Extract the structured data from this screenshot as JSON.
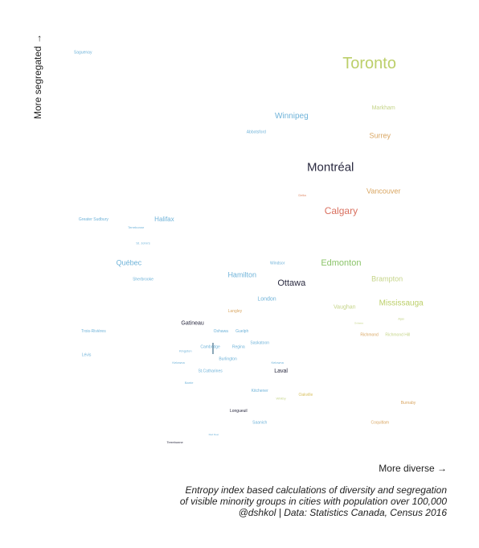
{
  "chart_data": {
    "type": "scatter",
    "title": "",
    "xlabel": "More diverse →",
    "ylabel": "More segregated →",
    "xlim": [
      0,
      1
    ],
    "ylim": [
      0,
      1
    ],
    "points": [
      {
        "label": "Toronto",
        "x": 0.84,
        "y": 0.96,
        "color": "#bccf6a",
        "size": 20
      },
      {
        "label": "Saguenay",
        "x": 0.03,
        "y": 0.99,
        "color": "#6fb3d9",
        "size": 5
      },
      {
        "label": "Markham",
        "x": 0.88,
        "y": 0.85,
        "color": "#c5d488",
        "size": 7
      },
      {
        "label": "Winnipeg",
        "x": 0.62,
        "y": 0.83,
        "color": "#6fb3d9",
        "size": 10
      },
      {
        "label": "Abbotsford",
        "x": 0.52,
        "y": 0.79,
        "color": "#6fb3d9",
        "size": 5
      },
      {
        "label": "Surrey",
        "x": 0.87,
        "y": 0.78,
        "color": "#d9a662",
        "size": 9
      },
      {
        "label": "Montréal",
        "x": 0.73,
        "y": 0.7,
        "color": "#2a2a40",
        "size": 15
      },
      {
        "label": "Vancouver",
        "x": 0.88,
        "y": 0.64,
        "color": "#d9a662",
        "size": 9
      },
      {
        "label": "Delta",
        "x": 0.65,
        "y": 0.63,
        "color": "#e08a66",
        "size": 4
      },
      {
        "label": "Calgary",
        "x": 0.76,
        "y": 0.59,
        "color": "#d9705f",
        "size": 12
      },
      {
        "label": "Halifax",
        "x": 0.26,
        "y": 0.57,
        "color": "#6fb3d9",
        "size": 8
      },
      {
        "label": "Greater Sudbury",
        "x": 0.06,
        "y": 0.57,
        "color": "#6fb3d9",
        "size": 5
      },
      {
        "label": "Terrebonne",
        "x": 0.18,
        "y": 0.55,
        "color": "#6fb3d9",
        "size": 4
      },
      {
        "label": "St. John's",
        "x": 0.2,
        "y": 0.51,
        "color": "#6fb3d9",
        "size": 4
      },
      {
        "label": "Québec",
        "x": 0.16,
        "y": 0.46,
        "color": "#6fb3d9",
        "size": 9
      },
      {
        "label": "Edmonton",
        "x": 0.76,
        "y": 0.46,
        "color": "#8bc46a",
        "size": 11
      },
      {
        "label": "Windsor",
        "x": 0.58,
        "y": 0.46,
        "color": "#6fb3d9",
        "size": 5
      },
      {
        "label": "Hamilton",
        "x": 0.48,
        "y": 0.43,
        "color": "#6fb3d9",
        "size": 9
      },
      {
        "label": "Sherbrooke",
        "x": 0.2,
        "y": 0.42,
        "color": "#6fb3d9",
        "size": 5
      },
      {
        "label": "Ottawa",
        "x": 0.62,
        "y": 0.41,
        "color": "#2a2a40",
        "size": 11
      },
      {
        "label": "Brampton",
        "x": 0.89,
        "y": 0.42,
        "color": "#c5d488",
        "size": 9
      },
      {
        "label": "London",
        "x": 0.55,
        "y": 0.37,
        "color": "#6fb3d9",
        "size": 7
      },
      {
        "label": "Mississauga",
        "x": 0.93,
        "y": 0.36,
        "color": "#bccf6a",
        "size": 10
      },
      {
        "label": "Vaughan",
        "x": 0.77,
        "y": 0.35,
        "color": "#c5d488",
        "size": 7
      },
      {
        "label": "Langley",
        "x": 0.46,
        "y": 0.34,
        "color": "#d9a662",
        "size": 5
      },
      {
        "label": "Ajax",
        "x": 0.93,
        "y": 0.32,
        "color": "#c5d488",
        "size": 4
      },
      {
        "label": "Oshawa",
        "x": 0.81,
        "y": 0.31,
        "color": "#c5d488",
        "size": 3
      },
      {
        "label": "Gatineau",
        "x": 0.34,
        "y": 0.31,
        "color": "#2a2a40",
        "size": 7
      },
      {
        "label": "Oshawa",
        "x": 0.42,
        "y": 0.29,
        "color": "#6fb3d9",
        "size": 5
      },
      {
        "label": "Guelph",
        "x": 0.48,
        "y": 0.29,
        "color": "#6fb3d9",
        "size": 5
      },
      {
        "label": "Richmond",
        "x": 0.84,
        "y": 0.28,
        "color": "#d9a662",
        "size": 5
      },
      {
        "label": "Richmond Hill",
        "x": 0.92,
        "y": 0.28,
        "color": "#c5d488",
        "size": 5
      },
      {
        "label": "Trois-Rivières",
        "x": 0.06,
        "y": 0.29,
        "color": "#6fb3d9",
        "size": 5
      },
      {
        "label": "Saskatoon",
        "x": 0.53,
        "y": 0.26,
        "color": "#6fb3d9",
        "size": 5
      },
      {
        "label": "Cambridge",
        "x": 0.39,
        "y": 0.25,
        "color": "#6fb3d9",
        "size": 5
      },
      {
        "label": "Regina",
        "x": 0.47,
        "y": 0.25,
        "color": "#6fb3d9",
        "size": 5
      },
      {
        "label": "Kingston",
        "x": 0.32,
        "y": 0.24,
        "color": "#6fb3d9",
        "size": 4
      },
      {
        "label": "Lévis",
        "x": 0.04,
        "y": 0.23,
        "color": "#6fb3d9",
        "size": 5
      },
      {
        "label": "Burlington",
        "x": 0.44,
        "y": 0.22,
        "color": "#6fb3d9",
        "size": 5
      },
      {
        "label": "Kelowna",
        "x": 0.58,
        "y": 0.21,
        "color": "#6fb3d9",
        "size": 4
      },
      {
        "label": "Kelowna",
        "x": 0.3,
        "y": 0.21,
        "color": "#6fb3d9",
        "size": 4
      },
      {
        "label": "St.Catharines",
        "x": 0.39,
        "y": 0.19,
        "color": "#6fb3d9",
        "size": 5
      },
      {
        "label": "Laval",
        "x": 0.59,
        "y": 0.19,
        "color": "#2a2a40",
        "size": 7
      },
      {
        "label": "Barrie",
        "x": 0.33,
        "y": 0.16,
        "color": "#6fb3d9",
        "size": 4
      },
      {
        "label": "Kitchener",
        "x": 0.53,
        "y": 0.14,
        "color": "#6fb3d9",
        "size": 5
      },
      {
        "label": "Oakville",
        "x": 0.66,
        "y": 0.13,
        "color": "#d9c262",
        "size": 5
      },
      {
        "label": "Whitby",
        "x": 0.59,
        "y": 0.12,
        "color": "#c5d488",
        "size": 4
      },
      {
        "label": "Burnaby",
        "x": 0.95,
        "y": 0.11,
        "color": "#d9a662",
        "size": 5
      },
      {
        "label": "Longueuil",
        "x": 0.47,
        "y": 0.09,
        "color": "#2a2a40",
        "size": 5
      },
      {
        "label": "Saanich",
        "x": 0.53,
        "y": 0.06,
        "color": "#6fb3d9",
        "size": 5
      },
      {
        "label": "Coquitlam",
        "x": 0.87,
        "y": 0.06,
        "color": "#d9a662",
        "size": 5
      },
      {
        "label": "Red Deer",
        "x": 0.4,
        "y": 0.03,
        "color": "#6fb3d9",
        "size": 3
      },
      {
        "label": "Terrebonne",
        "x": 0.29,
        "y": 0.01,
        "color": "#2a2a40",
        "size": 4
      }
    ]
  },
  "caption": {
    "line1": "Entropy index based calculations of diversity and segregation",
    "line2": "of visible minority groups in cities with population over 100,000",
    "line3": "@dshkol | Data: Statistics Canada, Census 2016"
  }
}
